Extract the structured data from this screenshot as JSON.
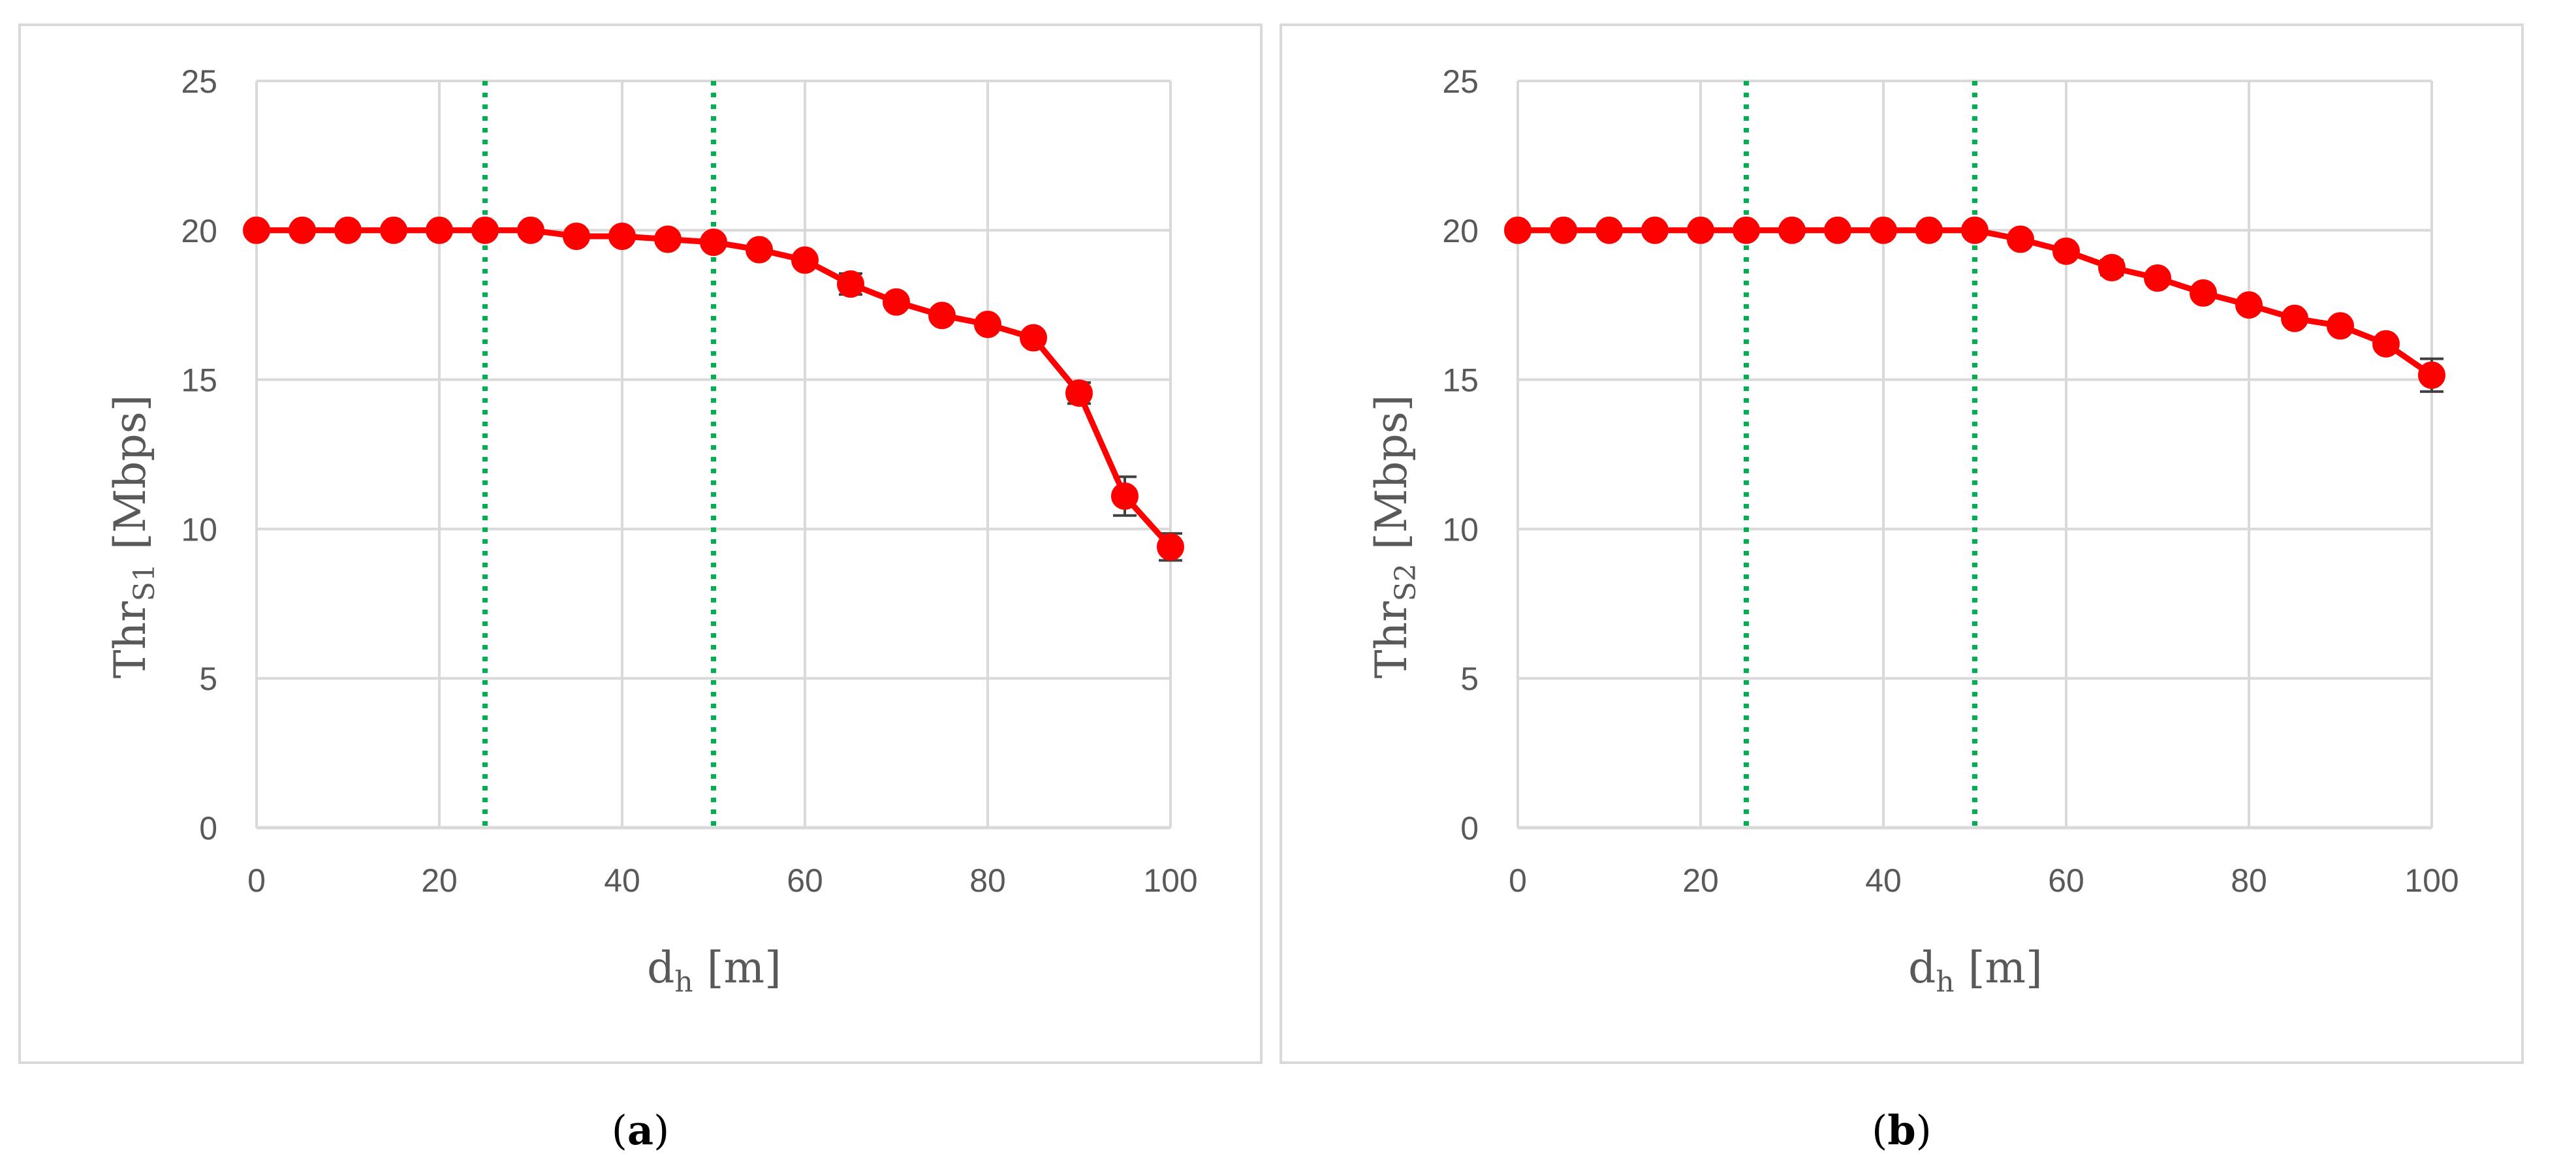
{
  "colors": {
    "series": "#ff0000",
    "marker": "#ff0000",
    "vline": "#00b050",
    "grid": "#d9d9d9",
    "panel_border": "#d9d9d9",
    "text": "#595959"
  },
  "chart_data": [
    {
      "type": "line",
      "panel": "a",
      "caption_open": "(",
      "caption_letter": "a",
      "caption_close": ")",
      "ylabel_main": "Thr",
      "ylabel_sub": "S1",
      "ylabel_unit": " [Mbps]",
      "xlabel_main": "d",
      "xlabel_sub": "h",
      "xlabel_unit": "  [m]",
      "xlim": [
        0,
        100
      ],
      "ylim": [
        0,
        25
      ],
      "xticks": [
        0,
        20,
        40,
        60,
        80,
        100
      ],
      "yticks": [
        0,
        5,
        10,
        15,
        20,
        25
      ],
      "grid": true,
      "legend": "none",
      "vlines": [
        25,
        50
      ],
      "series": [
        {
          "x": [
            0,
            5,
            10,
            15,
            20,
            25,
            30,
            35,
            40,
            45,
            50,
            55,
            60,
            65,
            70,
            75,
            80,
            85,
            90,
            95,
            100
          ],
          "y": [
            20.0,
            20.0,
            20.0,
            20.0,
            20.0,
            20.0,
            20.0,
            19.8,
            19.8,
            19.7,
            19.6,
            19.35,
            19.0,
            18.2,
            17.6,
            17.15,
            16.85,
            16.4,
            14.55,
            11.1,
            9.4
          ],
          "err": [
            0,
            0,
            0,
            0,
            0,
            0,
            0,
            0,
            0,
            0,
            0,
            0,
            0,
            0.35,
            0,
            0,
            0,
            0,
            0.35,
            0.65,
            0.45
          ]
        }
      ]
    },
    {
      "type": "line",
      "panel": "b",
      "caption_open": "(",
      "caption_letter": "b",
      "caption_close": ")",
      "ylabel_main": "Thr",
      "ylabel_sub": "S2",
      "ylabel_unit": " [Mbps]",
      "xlabel_main": "d",
      "xlabel_sub": "h",
      "xlabel_unit": "  [m]",
      "xlim": [
        0,
        100
      ],
      "ylim": [
        0,
        25
      ],
      "xticks": [
        0,
        20,
        40,
        60,
        80,
        100
      ],
      "yticks": [
        0,
        5,
        10,
        15,
        20,
        25
      ],
      "grid": true,
      "legend": "none",
      "vlines": [
        25,
        50
      ],
      "series": [
        {
          "x": [
            0,
            5,
            10,
            15,
            20,
            25,
            30,
            35,
            40,
            45,
            50,
            55,
            60,
            65,
            70,
            75,
            80,
            85,
            90,
            95,
            100
          ],
          "y": [
            20.0,
            20.0,
            20.0,
            20.0,
            20.0,
            20.0,
            20.0,
            20.0,
            20.0,
            20.0,
            20.0,
            19.7,
            19.3,
            18.75,
            18.4,
            17.9,
            17.5,
            17.05,
            16.8,
            16.2,
            15.15
          ],
          "err": [
            0,
            0,
            0,
            0,
            0,
            0,
            0,
            0,
            0,
            0,
            0,
            0,
            0,
            0.25,
            0,
            0,
            0,
            0,
            0,
            0.2,
            0.55
          ]
        }
      ]
    }
  ]
}
